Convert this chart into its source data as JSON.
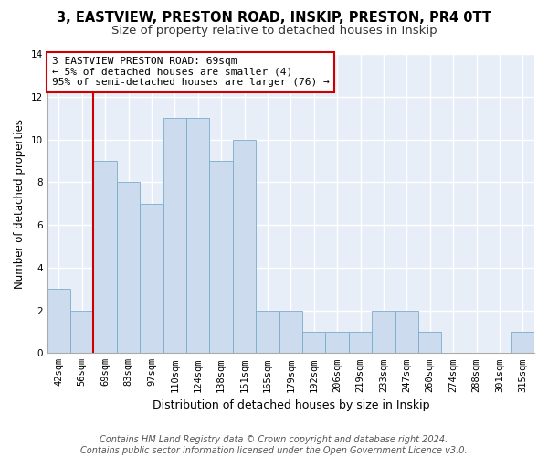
{
  "title1": "3, EASTVIEW, PRESTON ROAD, INSKIP, PRESTON, PR4 0TT",
  "title2": "Size of property relative to detached houses in Inskip",
  "xlabel": "Distribution of detached houses by size in Inskip",
  "ylabel": "Number of detached properties",
  "bin_labels": [
    "42sqm",
    "56sqm",
    "69sqm",
    "83sqm",
    "97sqm",
    "110sqm",
    "124sqm",
    "138sqm",
    "151sqm",
    "165sqm",
    "179sqm",
    "192sqm",
    "206sqm",
    "219sqm",
    "233sqm",
    "247sqm",
    "260sqm",
    "274sqm",
    "288sqm",
    "301sqm",
    "315sqm"
  ],
  "bin_counts": [
    3,
    2,
    9,
    8,
    7,
    11,
    11,
    9,
    10,
    2,
    2,
    1,
    1,
    1,
    2,
    2,
    1,
    0,
    0,
    0,
    1
  ],
  "bar_color": "#ccdcee",
  "bar_edge_color": "#7aaccc",
  "vline_index": 2,
  "vline_color": "#cc0000",
  "annotation_text": "3 EASTVIEW PRESTON ROAD: 69sqm\n← 5% of detached houses are smaller (4)\n95% of semi-detached houses are larger (76) →",
  "annotation_box_color": "#ffffff",
  "annotation_box_edge": "#cc0000",
  "ylim": [
    0,
    14
  ],
  "yticks": [
    0,
    2,
    4,
    6,
    8,
    10,
    12,
    14
  ],
  "footer": "Contains HM Land Registry data © Crown copyright and database right 2024.\nContains public sector information licensed under the Open Government Licence v3.0.",
  "bg_color": "#e8eef8",
  "grid_color": "#ffffff",
  "fig_bg_color": "#ffffff",
  "title1_fontsize": 10.5,
  "title2_fontsize": 9.5,
  "xlabel_fontsize": 9,
  "ylabel_fontsize": 8.5,
  "tick_fontsize": 7.5,
  "footer_fontsize": 7,
  "annotation_fontsize": 8
}
